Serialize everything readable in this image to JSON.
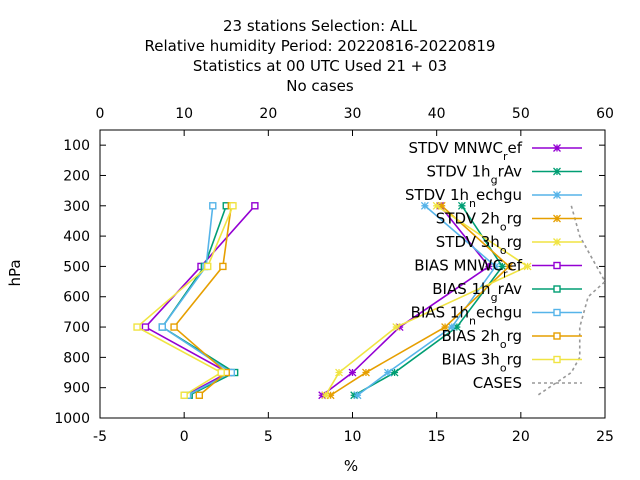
{
  "title_lines": [
    "23 stations Selection: ALL",
    "Relative humidity  Period: 20220816-20220819",
    "Statistics at 00 UTC  Used  21 + 03",
    "No cases"
  ],
  "chart_data": {
    "type": "line",
    "xlabel": "%",
    "ylabel": "hPa",
    "x_bottom": {
      "range": [
        -5,
        25
      ],
      "ticks": [
        "-5",
        "0",
        "5",
        "10",
        "15",
        "20",
        "25"
      ]
    },
    "x_top": {
      "range": [
        0,
        60
      ],
      "ticks": [
        "0",
        "10",
        "20",
        "30",
        "40",
        "50",
        "60"
      ]
    },
    "y_axis": {
      "range": [
        1000,
        50
      ],
      "reversed": true,
      "ticks": [
        "100",
        "200",
        "300",
        "400",
        "500",
        "600",
        "700",
        "800",
        "900",
        "1000"
      ]
    },
    "legend_position": "top-right",
    "series": [
      {
        "name": "STDV MNWC_ref",
        "color": "#9400d3",
        "marker": "star",
        "dash": false,
        "points": [
          [
            15.2,
            300
          ],
          [
            18.1,
            500
          ],
          [
            12.8,
            700
          ],
          [
            10.0,
            850
          ],
          [
            8.2,
            925
          ]
        ]
      },
      {
        "name": "STDV 1h_grAv",
        "color": "#009e73",
        "marker": "star",
        "dash": false,
        "points": [
          [
            16.5,
            300
          ],
          [
            18.9,
            500
          ],
          [
            16.2,
            700
          ],
          [
            12.5,
            850
          ],
          [
            10.1,
            925
          ]
        ]
      },
      {
        "name": "STDV 1h_nechgu",
        "color": "#56b4e9",
        "marker": "star",
        "dash": false,
        "points": [
          [
            14.3,
            300
          ],
          [
            18.5,
            500
          ],
          [
            15.9,
            700
          ],
          [
            12.1,
            850
          ],
          [
            10.3,
            925
          ]
        ]
      },
      {
        "name": "STDV 2h_org",
        "color": "#e69f00",
        "marker": "star",
        "dash": false,
        "points": [
          [
            15.3,
            300
          ],
          [
            19.3,
            500
          ],
          [
            15.5,
            700
          ],
          [
            10.8,
            850
          ],
          [
            8.7,
            925
          ]
        ]
      },
      {
        "name": "STDV 3h_org",
        "color": "#f0e442",
        "marker": "star",
        "dash": false,
        "points": [
          [
            15.0,
            300
          ],
          [
            20.4,
            500
          ],
          [
            12.6,
            700
          ],
          [
            9.2,
            850
          ],
          [
            8.4,
            925
          ]
        ]
      },
      {
        "name": "BIAS MNWC_ref",
        "color": "#9400d3",
        "marker": "square",
        "dash": false,
        "points": [
          [
            4.2,
            300
          ],
          [
            1.0,
            500
          ],
          [
            -2.3,
            700
          ],
          [
            2.6,
            850
          ],
          [
            0.1,
            925
          ]
        ]
      },
      {
        "name": "BIAS 1h_grAv",
        "color": "#009e73",
        "marker": "square",
        "dash": false,
        "points": [
          [
            2.5,
            300
          ],
          [
            1.2,
            500
          ],
          [
            -1.3,
            700
          ],
          [
            3.0,
            850
          ],
          [
            0.3,
            925
          ]
        ]
      },
      {
        "name": "BIAS 1h_nechgu",
        "color": "#56b4e9",
        "marker": "square",
        "dash": false,
        "points": [
          [
            1.7,
            300
          ],
          [
            1.3,
            500
          ],
          [
            -1.3,
            700
          ],
          [
            2.8,
            850
          ],
          [
            0.2,
            925
          ]
        ]
      },
      {
        "name": "BIAS 2h_org",
        "color": "#e69f00",
        "marker": "square",
        "dash": false,
        "points": [
          [
            2.8,
            300
          ],
          [
            2.3,
            500
          ],
          [
            -0.6,
            700
          ],
          [
            2.5,
            850
          ],
          [
            0.9,
            925
          ]
        ]
      },
      {
        "name": "BIAS 3h_org",
        "color": "#f0e442",
        "marker": "square",
        "dash": false,
        "points": [
          [
            2.9,
            300
          ],
          [
            1.4,
            500
          ],
          [
            -2.8,
            700
          ],
          [
            2.2,
            850
          ],
          [
            0.0,
            925
          ]
        ]
      },
      {
        "name": "CASES",
        "color": "#999999",
        "marker": "none",
        "dash": true,
        "axis": "top",
        "points": [
          [
            56,
            300
          ],
          [
            57,
            400
          ],
          [
            59,
            500
          ],
          [
            60,
            550
          ],
          [
            58,
            600
          ],
          [
            57,
            700
          ],
          [
            57,
            800
          ],
          [
            56,
            850
          ],
          [
            52,
            925
          ]
        ]
      }
    ]
  }
}
